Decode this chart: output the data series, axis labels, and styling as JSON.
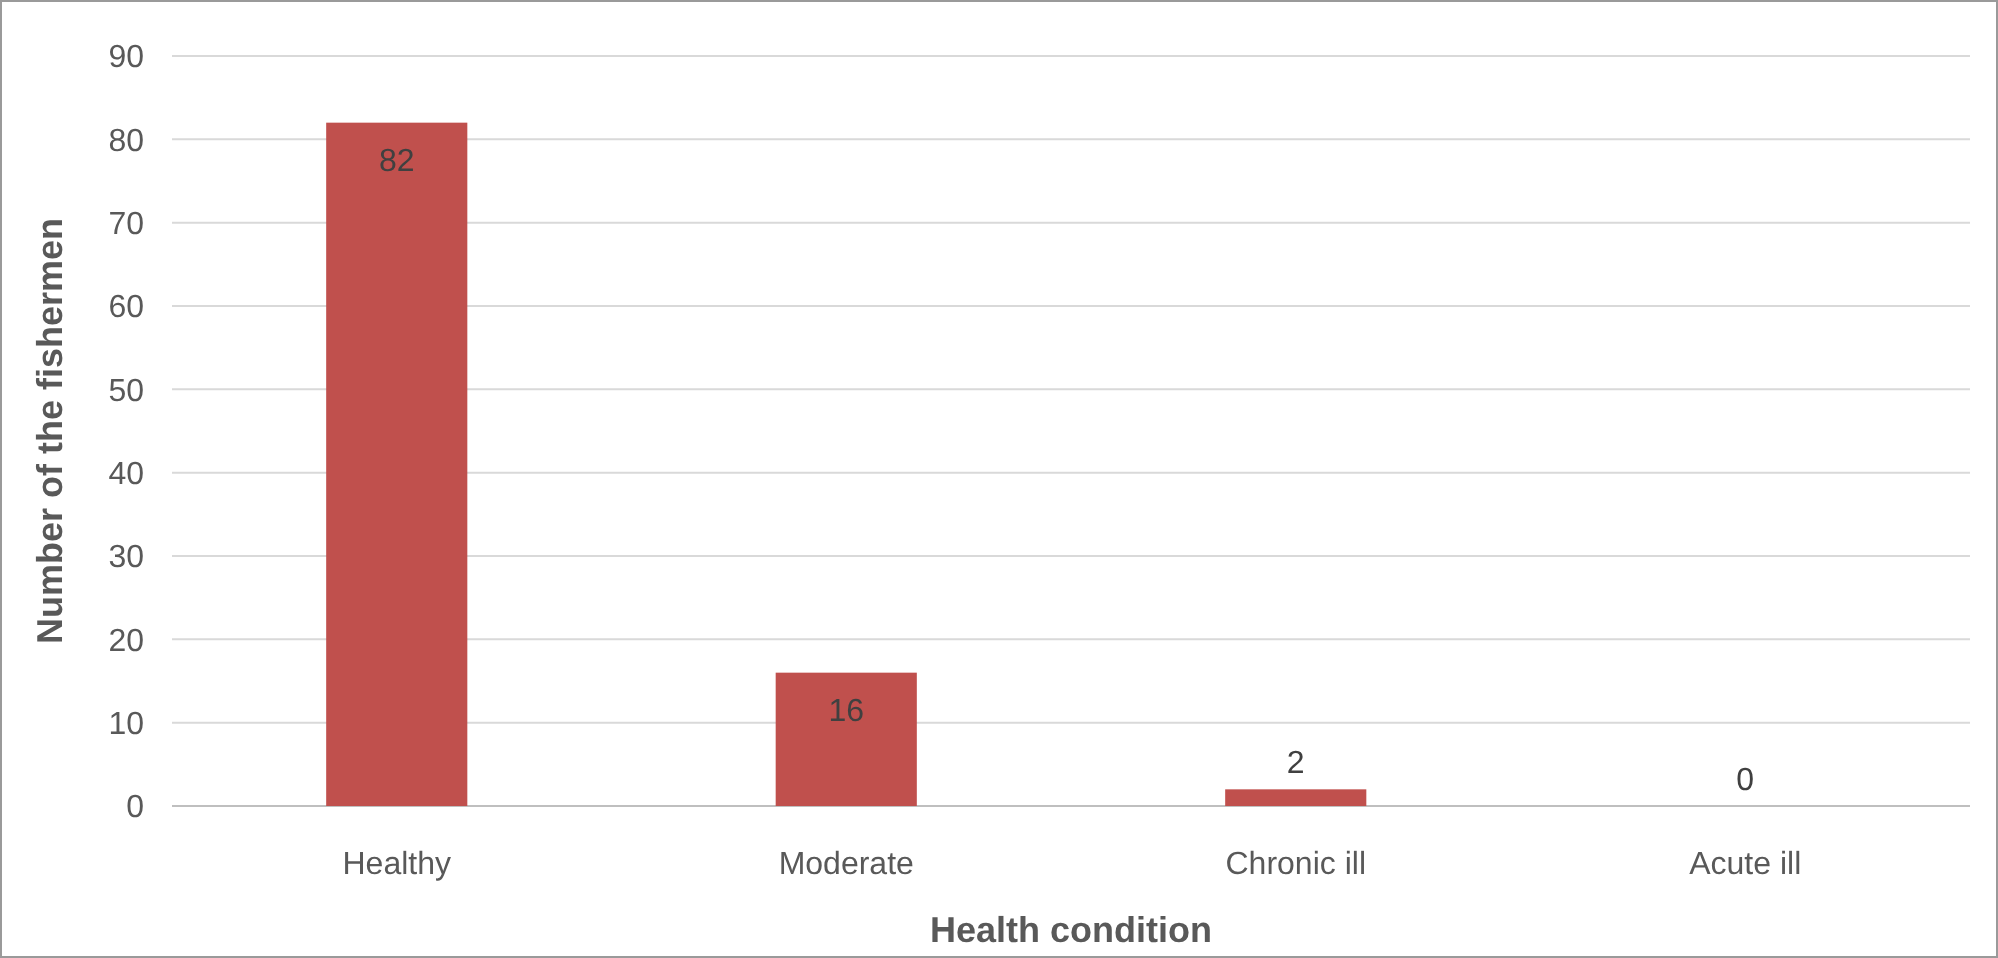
{
  "chart_data": {
    "type": "bar",
    "xlabel": "Health condition",
    "ylabel": "Number of the fishermen",
    "categories": [
      "Healthy",
      "Moderate",
      "Chronic ill",
      "Acute ill"
    ],
    "values": [
      82,
      16,
      2,
      0
    ],
    "color": "#c0504d",
    "ylim": [
      0,
      90
    ],
    "yticks": [
      0,
      10,
      20,
      30,
      40,
      50,
      60,
      70,
      80,
      90
    ],
    "grid": "y",
    "data_labels": true
  }
}
